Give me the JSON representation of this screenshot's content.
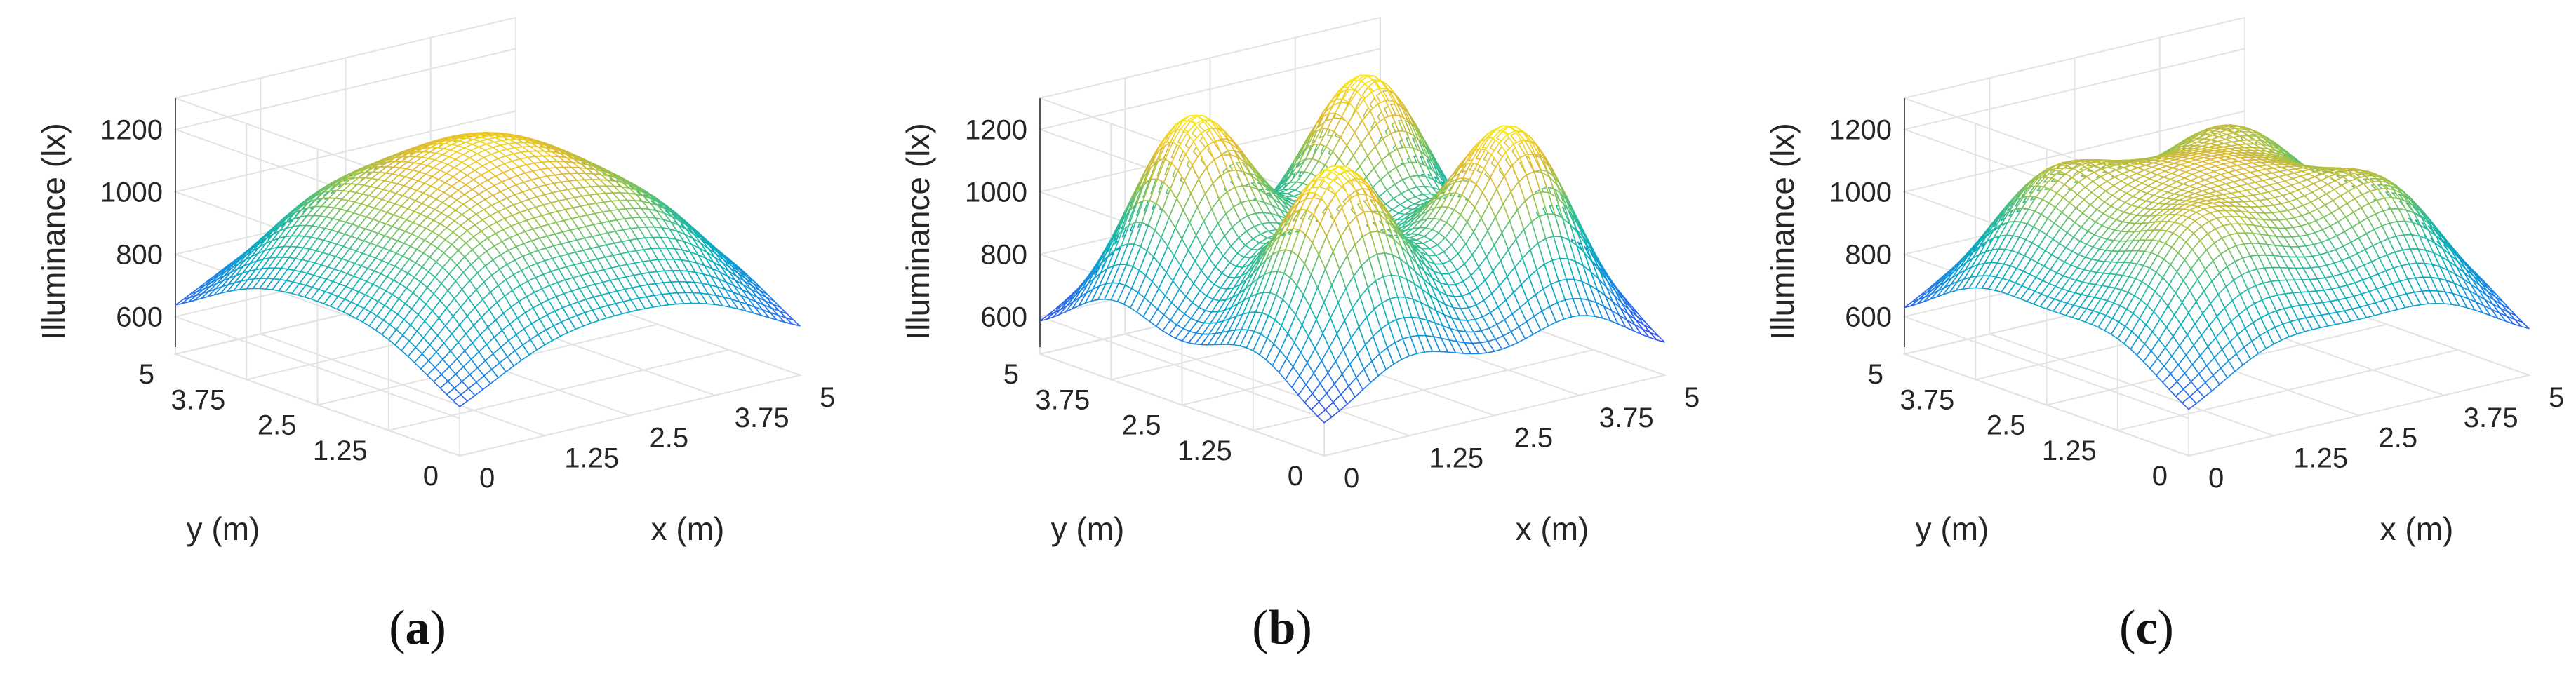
{
  "figure": {
    "panels": [
      "a",
      "b",
      "c"
    ]
  },
  "chart_data": [
    {
      "type": "surface",
      "panel_label": "a",
      "caption": {
        "open": "(",
        "letter": "a",
        "close": ")"
      },
      "title": "",
      "xlabel": "x (m)",
      "ylabel": "y (m)",
      "zlabel": "Illuminance (lx)",
      "x_ticks": [
        "0",
        "1.25",
        "2.5",
        "3.75",
        "5"
      ],
      "y_ticks": [
        "0",
        "1.25",
        "2.5",
        "3.75",
        "5"
      ],
      "z_ticks": [
        "600",
        "800",
        "1000",
        "1200"
      ],
      "xlim": [
        0,
        5
      ],
      "ylim": [
        0,
        5
      ],
      "zlim": [
        480,
        1300
      ],
      "grid": true,
      "colormap": "parula",
      "model": {
        "center": 1200,
        "corner": 500,
        "peak_positions_m": [
          1.25,
          3.75
        ],
        "sharpness": 0.0
      }
    },
    {
      "type": "surface",
      "panel_label": "b",
      "caption": {
        "open": "(",
        "letter": "b",
        "close": ")"
      },
      "title": "",
      "xlabel": "x (m)",
      "ylabel": "y (m)",
      "zlabel": "Illuminance (lx)",
      "x_ticks": [
        "0",
        "1.25",
        "2.5",
        "3.75",
        "5"
      ],
      "y_ticks": [
        "0",
        "1.25",
        "2.5",
        "3.75",
        "5"
      ],
      "z_ticks": [
        "600",
        "800",
        "1000",
        "1200"
      ],
      "xlim": [
        0,
        5
      ],
      "ylim": [
        0,
        5
      ],
      "zlim": [
        480,
        1300
      ],
      "grid": true,
      "colormap": "parula",
      "model": {
        "center": 830,
        "corner": 500,
        "peak_positions_m": [
          1.25,
          3.75
        ],
        "sharpness": 1.0
      }
    },
    {
      "type": "surface",
      "panel_label": "c",
      "caption": {
        "open": "(",
        "letter": "c",
        "close": ")"
      },
      "title": "",
      "xlabel": "x (m)",
      "ylabel": "y (m)",
      "zlabel": "Illuminance (lx)",
      "x_ticks": [
        "0",
        "1.25",
        "2.5",
        "3.75",
        "5"
      ],
      "y_ticks": [
        "0",
        "1.25",
        "2.5",
        "3.75",
        "5"
      ],
      "z_ticks": [
        "600",
        "800",
        "1000",
        "1200"
      ],
      "xlim": [
        0,
        5
      ],
      "ylim": [
        0,
        5
      ],
      "zlim": [
        480,
        1300
      ],
      "grid": true,
      "colormap": "parula",
      "model": {
        "center": 1120,
        "corner": 500,
        "peak_positions_m": [
          1.25,
          3.75
        ],
        "sharpness": 0.4
      }
    }
  ]
}
